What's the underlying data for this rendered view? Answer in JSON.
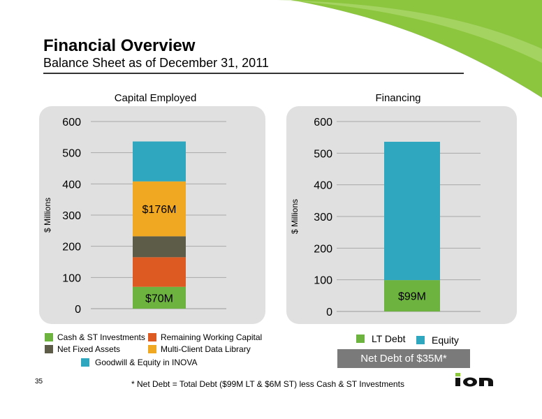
{
  "header": {
    "title": "Financial Overview",
    "subtitle": "Balance Sheet as of December 31, 2011"
  },
  "colors": {
    "brand_green": "#8cc63f",
    "cash": "#6db33f",
    "remaining_working_capital": "#dd5a22",
    "net_fixed_assets": "#5c5c49",
    "multi_client_data_library": "#f0a722",
    "goodwill_inova": "#2fa7bf",
    "lt_debt": "#6db33f",
    "equity": "#2fa7bf",
    "panel_bg": "#e0e0e0",
    "net_debt_box": "#7a7a7a"
  },
  "chart_data": [
    {
      "type": "bar",
      "stacked": true,
      "title": "Capital Employed",
      "ylabel": "$ Millions",
      "ylim": [
        0,
        600
      ],
      "yticks": [
        "0",
        "100",
        "200",
        "300",
        "400",
        "500",
        "600"
      ],
      "grid": true,
      "series": [
        {
          "name": "Cash & ST Investments",
          "value": 70,
          "label": "$70M",
          "color": "#6db33f"
        },
        {
          "name": "Remaining Working Capital",
          "value": 95,
          "label": "",
          "color": "#dd5a22"
        },
        {
          "name": "Net Fixed Assets",
          "value": 67,
          "label": "",
          "color": "#5c5c49"
        },
        {
          "name": "Multi-Client Data Library",
          "value": 176,
          "label": "$176M",
          "color": "#f0a722"
        },
        {
          "name": "Goodwill & Equity in INOVA",
          "value": 128,
          "label": "",
          "color": "#2fa7bf"
        }
      ]
    },
    {
      "type": "bar",
      "stacked": true,
      "title": "Financing",
      "ylabel": "$ Millions",
      "ylim": [
        0,
        600
      ],
      "yticks": [
        "0",
        "100",
        "200",
        "300",
        "400",
        "500",
        "600"
      ],
      "grid": true,
      "series": [
        {
          "name": "LT Debt",
          "value": 99,
          "label": "$99M",
          "color": "#6db33f"
        },
        {
          "name": "Equity",
          "value": 437,
          "label": "",
          "color": "#2fa7bf"
        }
      ]
    }
  ],
  "legend_left": [
    {
      "label": "Cash & ST Investments",
      "color": "#6db33f"
    },
    {
      "label": "Remaining Working Capital",
      "color": "#dd5a22"
    },
    {
      "label": "Net Fixed Assets",
      "color": "#5c5c49"
    },
    {
      "label": "Multi-Client Data Library",
      "color": "#f0a722"
    },
    {
      "label": "Goodwill & Equity in INOVA",
      "color": "#2fa7bf"
    }
  ],
  "legend_right": [
    {
      "label": "LT Debt",
      "color": "#6db33f"
    },
    {
      "label": "Equity",
      "color": "#2fa7bf"
    }
  ],
  "net_debt_box": "Net Debt of $35M*",
  "footer": {
    "page_number": "35",
    "footnote": "* Net Debt = Total Debt ($99M LT & $6M ST) less Cash & ST Investments",
    "logo_text": "ION"
  }
}
